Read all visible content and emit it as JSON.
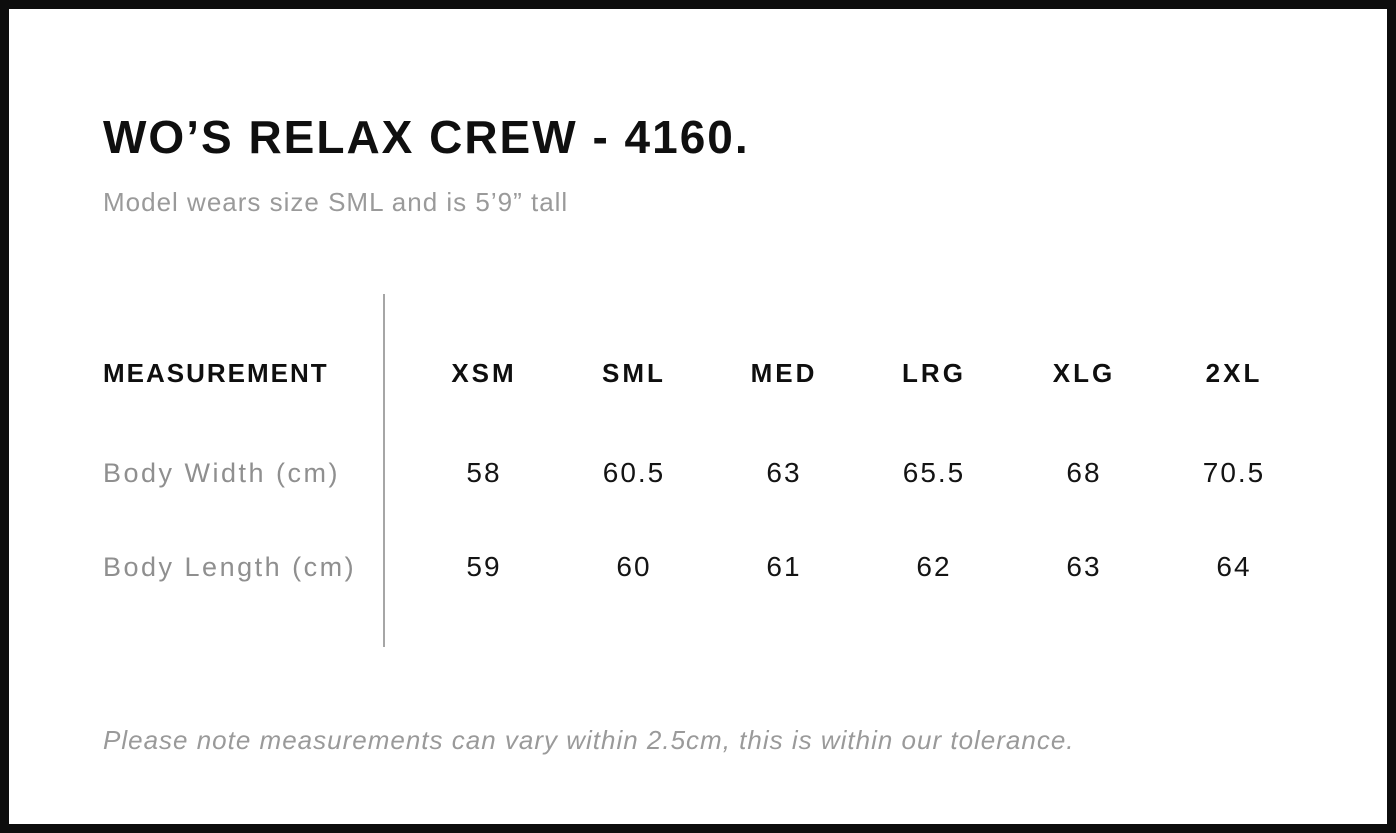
{
  "product": {
    "title": "WO’S RELAX CREW - 4160.",
    "model_note": "Model wears size SML and is 5’9” tall"
  },
  "size_chart": {
    "measurement_header": "MEASUREMENT",
    "sizes": [
      "XSM",
      "SML",
      "MED",
      "LRG",
      "XLG",
      "2XL"
    ],
    "rows": [
      {
        "label": "Body Width (cm)",
        "values": [
          "58",
          "60.5",
          "63",
          "65.5",
          "68",
          "70.5"
        ]
      },
      {
        "label": "Body Length (cm)",
        "values": [
          "59",
          "60",
          "61",
          "62",
          "63",
          "64"
        ]
      }
    ]
  },
  "footnote": "Please note measurements can vary within 2.5cm, this is within our tolerance.",
  "colors": {
    "text_primary": "#0f0f0f",
    "text_secondary": "#9a9a9a",
    "divider": "#a6a6a6",
    "frame": "#0d0d0d",
    "background": "#ffffff"
  }
}
